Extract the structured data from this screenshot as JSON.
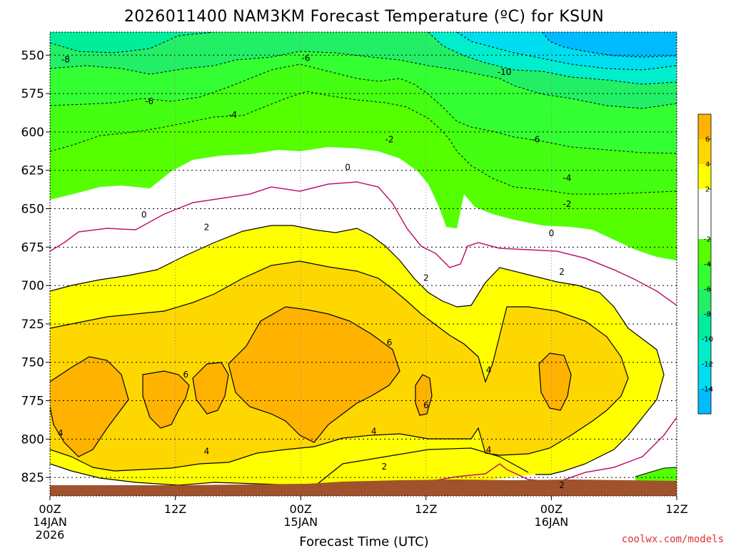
{
  "chart_data": {
    "type": "heatmap",
    "title": "2026011400 NAM3KM Forecast Temperature (ºC) for KSUN",
    "xlabel": "Forecast Time (UTC)",
    "ylabel": "",
    "y_axis": {
      "ticks": [
        550,
        575,
        600,
        625,
        650,
        675,
        700,
        725,
        750,
        775,
        800,
        825
      ],
      "ylim": [
        535,
        837
      ],
      "unit": "hPa",
      "grid": true
    },
    "x_axis": {
      "ticks": [
        {
          "label": "00Z",
          "sub1": "14JAN",
          "sub2": "2026",
          "hour": 0
        },
        {
          "label": "12Z",
          "sub1": "",
          "sub2": "",
          "hour": 12
        },
        {
          "label": "00Z",
          "sub1": "15JAN",
          "sub2": "",
          "hour": 24
        },
        {
          "label": "12Z",
          "sub1": "",
          "sub2": "",
          "hour": 36
        },
        {
          "label": "00Z",
          "sub1": "16JAN",
          "sub2": "",
          "hour": 48
        },
        {
          "label": "12Z",
          "sub1": "",
          "sub2": "",
          "hour": 60
        }
      ],
      "xlim": [
        0,
        60
      ],
      "unit": "forecast hour",
      "grid": true
    },
    "colorbar": {
      "labels": [
        "6",
        "4",
        "2",
        "-2",
        "-4",
        "-6",
        "-8",
        "-10",
        "-12",
        "-14"
      ],
      "bands": [
        {
          "min": 6,
          "max": 8,
          "color": "#FFB300"
        },
        {
          "min": 4,
          "max": 6,
          "color": "#FFD700"
        },
        {
          "min": 2,
          "max": 4,
          "color": "#FFFF00"
        },
        {
          "min": -2,
          "max": 2,
          "color": "#FFFFFF"
        },
        {
          "min": -4,
          "max": -2,
          "color": "#55FF00"
        },
        {
          "min": -6,
          "max": -4,
          "color": "#33FF33"
        },
        {
          "min": -8,
          "max": -6,
          "color": "#22EE66"
        },
        {
          "min": -10,
          "max": -8,
          "color": "#00EE99"
        },
        {
          "min": -12,
          "max": -10,
          "color": "#00EECC"
        },
        {
          "min": -14,
          "max": -12,
          "color": "#00DDEE"
        },
        {
          "min": -16,
          "max": -14,
          "color": "#00BBFF"
        }
      ]
    },
    "contour_labels": [
      {
        "text": "-8",
        "hour": 1.5,
        "p": 553
      },
      {
        "text": "-6",
        "hour": 24.5,
        "p": 552
      },
      {
        "text": "-10",
        "hour": 43.5,
        "p": 561
      },
      {
        "text": "-6",
        "hour": 9.5,
        "p": 580
      },
      {
        "text": "-4",
        "hour": 17.5,
        "p": 589
      },
      {
        "text": "-2",
        "hour": 32.5,
        "p": 605
      },
      {
        "text": "-6",
        "hour": 46.5,
        "p": 605
      },
      {
        "text": "0",
        "hour": 28.5,
        "p": 623
      },
      {
        "text": "-4",
        "hour": 49.5,
        "p": 630
      },
      {
        "text": "0",
        "hour": 9,
        "p": 654
      },
      {
        "text": "-2",
        "hour": 49.5,
        "p": 647
      },
      {
        "text": "2",
        "hour": 15,
        "p": 662
      },
      {
        "text": "0",
        "hour": 48,
        "p": 666
      },
      {
        "text": "2",
        "hour": 36,
        "p": 695
      },
      {
        "text": "2",
        "hour": 49,
        "p": 691
      },
      {
        "text": "6",
        "hour": 32.5,
        "p": 737
      },
      {
        "text": "6",
        "hour": 13,
        "p": 758
      },
      {
        "text": "4",
        "hour": 42,
        "p": 755
      },
      {
        "text": "6",
        "hour": 36,
        "p": 778
      },
      {
        "text": "4",
        "hour": 1,
        "p": 796
      },
      {
        "text": "4",
        "hour": 31,
        "p": 795
      },
      {
        "text": "4",
        "hour": 15,
        "p": 808
      },
      {
        "text": "4",
        "hour": 42,
        "p": 807
      },
      {
        "text": "2",
        "hour": 32,
        "p": 818
      },
      {
        "text": "2",
        "hour": 49,
        "p": 830
      }
    ],
    "terrain": {
      "top_pressure_hpa": 832,
      "color": "#A0522D"
    }
  },
  "credit": "coolwx.com/models"
}
